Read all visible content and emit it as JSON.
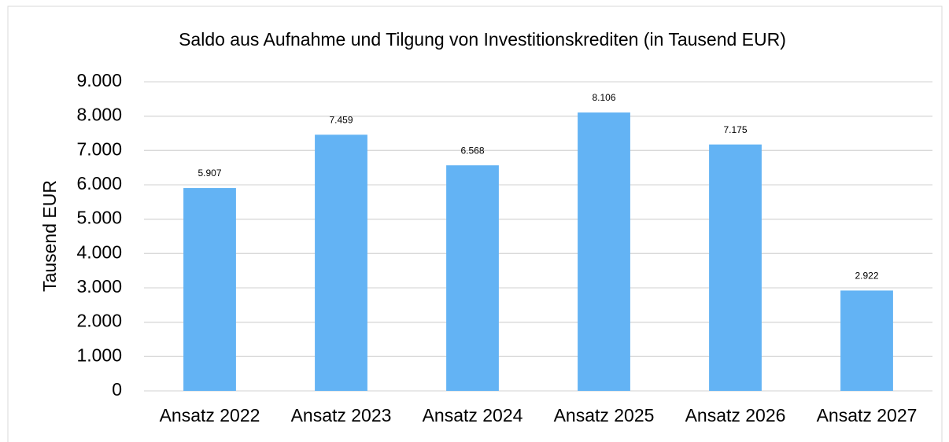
{
  "chart_data": {
    "type": "bar",
    "title": "Saldo aus Aufnahme und Tilgung von Investitionskrediten (in Tausend EUR)",
    "y_label": "Tausend EUR",
    "categories": [
      "Ansatz 2022",
      "Ansatz 2023",
      "Ansatz 2024",
      "Ansatz 2025",
      "Ansatz 2026",
      "Ansatz 2027"
    ],
    "values": [
      5907,
      7459,
      6568,
      8106,
      7175,
      2922
    ],
    "value_labels": [
      "5.907",
      "7.459",
      "6.568",
      "8.106",
      "7.175",
      "2.922"
    ],
    "color": "#63b3f4",
    "ylim": [
      0,
      9000
    ],
    "yticks": [
      0,
      {
        "value": 1000,
        "label": "1.000"
      },
      {
        "value": 2000,
        "label": "2.000"
      },
      {
        "value": 3000,
        "label": "3.000"
      },
      {
        "value": 4000,
        "label": "4.000"
      },
      {
        "value": 5000,
        "label": "5.000"
      },
      {
        "value": 6000,
        "label": "6.000"
      },
      {
        "value": 7000,
        "label": "7.000"
      },
      {
        "value": 8000,
        "label": "8.000"
      },
      {
        "value": 9000,
        "label": "9.000"
      }
    ],
    "grid": true
  }
}
